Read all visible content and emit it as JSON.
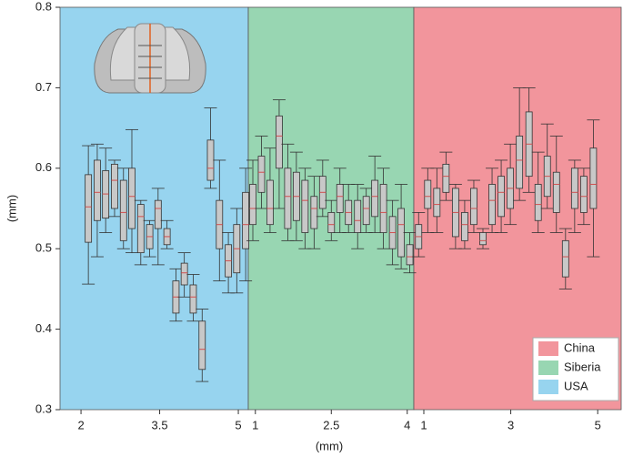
{
  "chart_data": {
    "type": "box",
    "xlabel": "(mm)",
    "ylabel": "(mm)",
    "ylim": [
      0.3,
      0.8
    ],
    "yticks": [
      0.3,
      0.4,
      0.5,
      0.6,
      0.7,
      0.8
    ],
    "legend": "lower right",
    "box_color": "#c8c8c8",
    "median_color": "#d05050",
    "panels": [
      {
        "name": "USA",
        "color": "#97d4ef",
        "xlim": [
          1.6,
          5.19
        ],
        "xticks": [
          2,
          3.5,
          5
        ],
        "x": [
          2.14,
          2.31,
          2.47,
          2.64,
          2.81,
          2.97,
          3.14,
          3.31,
          3.47,
          3.64,
          3.81,
          3.97,
          4.14,
          4.31,
          4.47,
          4.64,
          4.81,
          4.97,
          5.14
        ],
        "boxes": [
          [
            0.456,
            0.508,
            0.552,
            0.592,
            0.628
          ],
          [
            0.49,
            0.535,
            0.57,
            0.61,
            0.63
          ],
          [
            0.52,
            0.538,
            0.568,
            0.597,
            0.625
          ],
          [
            0.54,
            0.55,
            0.585,
            0.605,
            0.61
          ],
          [
            0.5,
            0.51,
            0.545,
            0.585,
            0.6
          ],
          [
            0.495,
            0.525,
            0.565,
            0.6,
            0.648
          ],
          [
            0.48,
            0.495,
            0.54,
            0.555,
            0.56
          ],
          [
            0.49,
            0.5,
            0.515,
            0.53,
            0.535
          ],
          [
            0.48,
            0.525,
            0.55,
            0.56,
            0.575
          ],
          [
            0.5,
            0.505,
            0.515,
            0.525,
            0.535
          ],
          [
            0.41,
            0.42,
            0.44,
            0.46,
            0.475
          ],
          [
            0.44,
            0.455,
            0.47,
            0.482,
            0.495
          ],
          [
            0.41,
            0.42,
            0.44,
            0.455,
            0.468
          ],
          [
            0.335,
            0.35,
            0.375,
            0.41,
            0.425
          ],
          [
            0.575,
            0.585,
            0.6,
            0.635,
            0.675
          ],
          [
            0.46,
            0.5,
            0.53,
            0.56,
            0.61
          ],
          [
            0.445,
            0.465,
            0.485,
            0.505,
            0.52
          ],
          [
            0.445,
            0.47,
            0.5,
            0.53,
            0.55
          ],
          [
            0.46,
            0.5,
            0.53,
            0.57,
            0.6
          ]
        ]
      },
      {
        "name": "Siberia",
        "color": "#98d6b2",
        "xlim": [
          0.86,
          4.13
        ],
        "xticks": [
          1,
          2.5,
          4
        ],
        "x": [
          0.95,
          1.12,
          1.29,
          1.47,
          1.64,
          1.81,
          1.98,
          2.16,
          2.33,
          2.5,
          2.67,
          2.84,
          3.02,
          3.19,
          3.36,
          3.53,
          3.71,
          3.88,
          4.05
        ],
        "boxes": [
          [
            0.51,
            0.53,
            0.55,
            0.58,
            0.61
          ],
          [
            0.55,
            0.57,
            0.595,
            0.615,
            0.64
          ],
          [
            0.52,
            0.53,
            0.55,
            0.585,
            0.625
          ],
          [
            0.55,
            0.6,
            0.64,
            0.665,
            0.685
          ],
          [
            0.51,
            0.525,
            0.565,
            0.6,
            0.63
          ],
          [
            0.51,
            0.535,
            0.565,
            0.595,
            0.62
          ],
          [
            0.5,
            0.52,
            0.56,
            0.585,
            0.6
          ],
          [
            0.5,
            0.525,
            0.55,
            0.565,
            0.59
          ],
          [
            0.54,
            0.55,
            0.57,
            0.59,
            0.61
          ],
          [
            0.51,
            0.52,
            0.53,
            0.545,
            0.56
          ],
          [
            0.52,
            0.545,
            0.565,
            0.58,
            0.6
          ],
          [
            0.52,
            0.53,
            0.545,
            0.56,
            0.58
          ],
          [
            0.5,
            0.52,
            0.535,
            0.56,
            0.58
          ],
          [
            0.52,
            0.53,
            0.55,
            0.565,
            0.575
          ],
          [
            0.52,
            0.54,
            0.565,
            0.585,
            0.615
          ],
          [
            0.5,
            0.52,
            0.545,
            0.58,
            0.6
          ],
          [
            0.48,
            0.5,
            0.52,
            0.54,
            0.56
          ],
          [
            0.475,
            0.49,
            0.53,
            0.55,
            0.58
          ],
          [
            0.47,
            0.48,
            0.49,
            0.505,
            0.52
          ]
        ]
      },
      {
        "name": "China",
        "color": "#f2959c",
        "xlim": [
          0.77,
          5.54
        ],
        "xticks": [
          1,
          3,
          5
        ],
        "x": [
          0.88,
          1.09,
          1.3,
          1.51,
          1.73,
          1.94,
          2.15,
          2.36,
          2.57,
          2.78,
          2.99,
          3.2,
          3.42,
          3.63,
          3.84,
          4.05,
          4.26,
          4.47,
          4.68,
          4.9
        ],
        "boxes": [
          [
            0.49,
            0.5,
            0.515,
            0.53,
            0.545
          ],
          [
            0.52,
            0.55,
            0.565,
            0.585,
            0.6
          ],
          [
            0.52,
            0.54,
            0.555,
            0.575,
            0.6
          ],
          [
            0.56,
            0.57,
            0.59,
            0.605,
            0.62
          ],
          [
            0.5,
            0.515,
            0.545,
            0.575,
            0.58
          ],
          [
            0.5,
            0.51,
            0.53,
            0.545,
            0.56
          ],
          [
            0.52,
            0.53,
            0.55,
            0.575,
            0.585
          ],
          [
            0.5,
            0.505,
            0.51,
            0.52,
            0.525
          ],
          [
            0.52,
            0.53,
            0.56,
            0.58,
            0.6
          ],
          [
            0.52,
            0.54,
            0.57,
            0.59,
            0.61
          ],
          [
            0.53,
            0.55,
            0.575,
            0.6,
            0.63
          ],
          [
            0.56,
            0.575,
            0.61,
            0.64,
            0.7
          ],
          [
            0.57,
            0.59,
            0.63,
            0.67,
            0.7
          ],
          [
            0.52,
            0.535,
            0.555,
            0.58,
            0.62
          ],
          [
            0.55,
            0.565,
            0.59,
            0.615,
            0.655
          ],
          [
            0.52,
            0.545,
            0.58,
            0.595,
            0.64
          ],
          [
            0.45,
            0.465,
            0.49,
            0.51,
            0.525
          ],
          [
            0.52,
            0.55,
            0.57,
            0.6,
            0.61
          ],
          [
            0.53,
            0.545,
            0.565,
            0.59,
            0.6
          ],
          [
            0.49,
            0.55,
            0.58,
            0.625,
            0.66
          ]
        ]
      }
    ]
  }
}
